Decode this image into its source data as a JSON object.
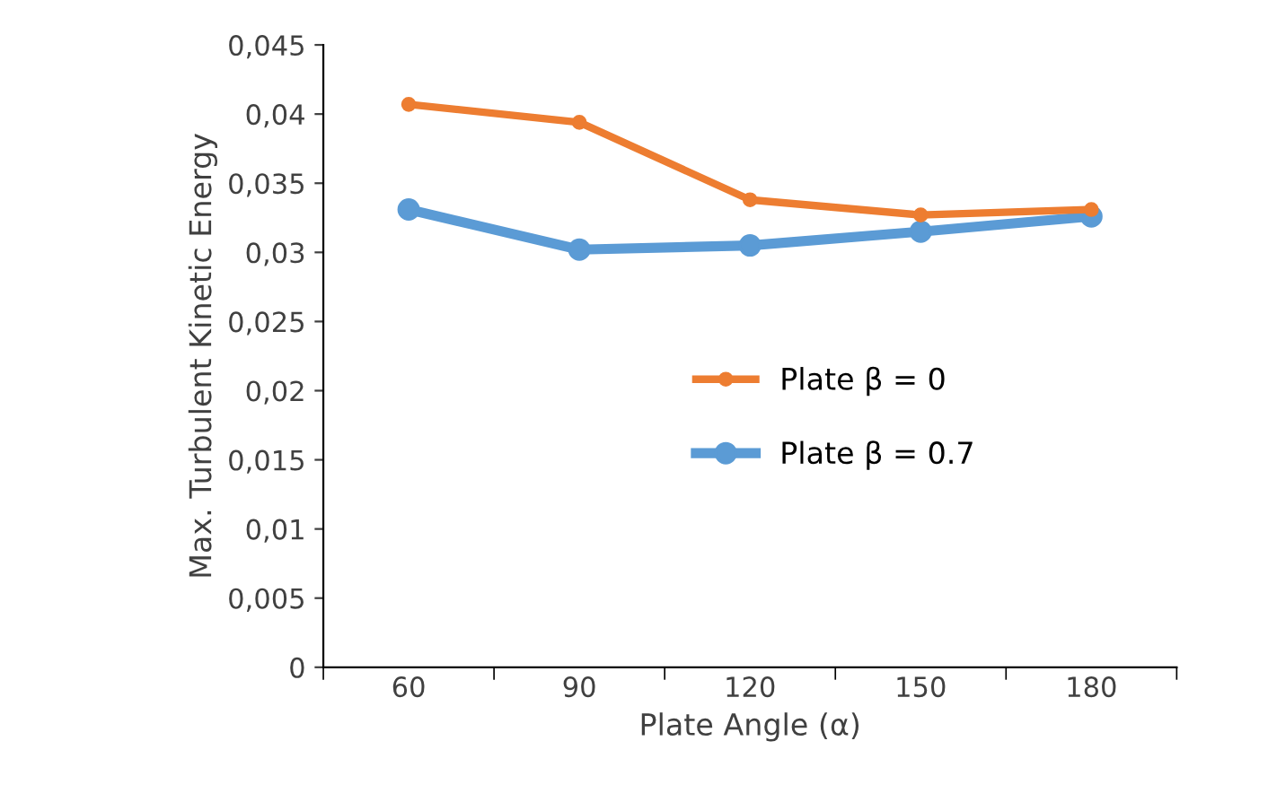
{
  "chart_data": {
    "type": "line",
    "xlabel": "Plate Angle (α)",
    "ylabel": "Max. Turbulent Kinetic Energy",
    "categories": [
      "60",
      "90",
      "120",
      "150",
      "180"
    ],
    "series": [
      {
        "name": "Plate β = 0",
        "color": "#ed7d31",
        "values": [
          0.0407,
          0.0394,
          0.0338,
          0.0327,
          0.0331
        ]
      },
      {
        "name": "Plate β = 0.7",
        "color": "#5b9bd5",
        "values": [
          0.0331,
          0.0302,
          0.0305,
          0.0315,
          0.0326
        ]
      }
    ],
    "ylim": [
      0,
      0.045
    ],
    "yticks": [
      0,
      {
        "value": 0.005,
        "label": "0,005"
      },
      {
        "value": 0.01,
        "label": "0,01"
      },
      {
        "value": 0.015,
        "label": "0,015"
      },
      {
        "value": 0.02,
        "label": "0,02"
      },
      {
        "value": 0.025,
        "label": "0,025"
      },
      {
        "value": 0.03,
        "label": "0,03"
      },
      {
        "value": 0.035,
        "label": "0,035"
      },
      {
        "value": 0.04,
        "label": "0,04"
      },
      {
        "value": 0.045,
        "label": "0,045"
      }
    ],
    "marker": "circle",
    "line_style": "solid",
    "grid": false,
    "legend": "center"
  }
}
